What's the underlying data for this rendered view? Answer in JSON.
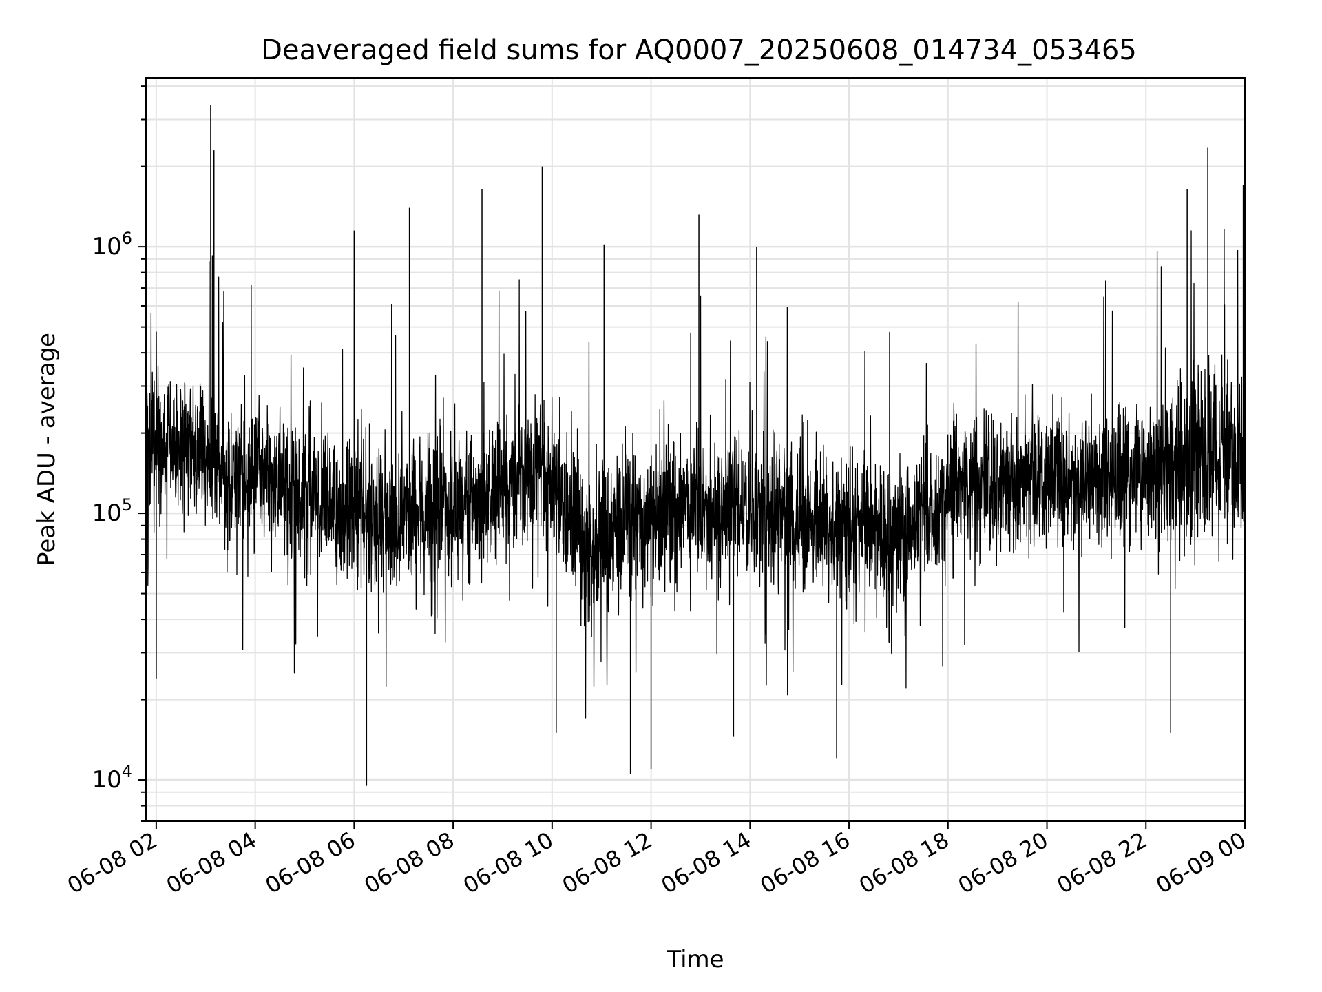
{
  "chart_data": {
    "type": "line",
    "title": "Deaveraged field sums for AQ0007_20250608_014734_053465",
    "xlabel": "Time",
    "ylabel": "Peak ADU - average",
    "y_scale": "log",
    "ylim": [
      7000,
      4300000
    ],
    "xlim": [
      "2025-06-08 01:47:34",
      "2025-06-09 00:00:00"
    ],
    "grid": true,
    "grid_minor": true,
    "legend": "none",
    "x_ticks": [
      {
        "t": "2025-06-08 02:00",
        "label": "06-08 02"
      },
      {
        "t": "2025-06-08 04:00",
        "label": "06-08 04"
      },
      {
        "t": "2025-06-08 06:00",
        "label": "06-08 06"
      },
      {
        "t": "2025-06-08 08:00",
        "label": "06-08 08"
      },
      {
        "t": "2025-06-08 10:00",
        "label": "06-08 10"
      },
      {
        "t": "2025-06-08 12:00",
        "label": "06-08 12"
      },
      {
        "t": "2025-06-08 14:00",
        "label": "06-08 14"
      },
      {
        "t": "2025-06-08 16:00",
        "label": "06-08 16"
      },
      {
        "t": "2025-06-08 18:00",
        "label": "06-08 18"
      },
      {
        "t": "2025-06-08 20:00",
        "label": "06-08 20"
      },
      {
        "t": "2025-06-08 22:00",
        "label": "06-08 22"
      },
      {
        "t": "2025-06-09 00:00",
        "label": "06-09 00"
      }
    ],
    "y_ticks": [
      {
        "value": 10000,
        "base": "10",
        "exp": "4"
      },
      {
        "value": 100000,
        "base": "10",
        "exp": "5"
      },
      {
        "value": 1000000,
        "base": "10",
        "exp": "6"
      }
    ],
    "series": [
      {
        "color": "#000000",
        "envelope": {
          "t": [
            "2025-06-08 01:48",
            "2025-06-08 02:30",
            "2025-06-08 03:00",
            "2025-06-08 04:00",
            "2025-06-08 05:00",
            "2025-06-08 06:00",
            "2025-06-08 06:30",
            "2025-06-08 07:00",
            "2025-06-08 08:00",
            "2025-06-08 09:00",
            "2025-06-08 09:45",
            "2025-06-08 10:00",
            "2025-06-08 10:45",
            "2025-06-08 11:30",
            "2025-06-08 12:30",
            "2025-06-08 13:00",
            "2025-06-08 14:00",
            "2025-06-08 15:00",
            "2025-06-08 16:00",
            "2025-06-08 16:45",
            "2025-06-08 17:30",
            "2025-06-08 18:00",
            "2025-06-08 19:00",
            "2025-06-08 20:00",
            "2025-06-08 21:00",
            "2025-06-08 22:00",
            "2025-06-08 23:00",
            "2025-06-09 00:00"
          ],
          "median": [
            190000,
            175000,
            150000,
            135000,
            120000,
            105000,
            92000,
            100000,
            108000,
            120000,
            160000,
            120000,
            72000,
            90000,
            100000,
            110000,
            100000,
            95000,
            92000,
            80000,
            88000,
            120000,
            130000,
            140000,
            135000,
            140000,
            170000,
            160000
          ],
          "low": [
            95000,
            90000,
            75000,
            62000,
            55000,
            48000,
            40000,
            45000,
            52000,
            58000,
            80000,
            55000,
            33000,
            40000,
            45000,
            50000,
            46000,
            44000,
            42000,
            36000,
            40000,
            58000,
            62000,
            68000,
            65000,
            68000,
            70000,
            70000
          ],
          "high": [
            330000,
            310000,
            270000,
            240000,
            210000,
            190000,
            170000,
            180000,
            195000,
            215000,
            290000,
            225000,
            135000,
            165000,
            185000,
            200000,
            180000,
            170000,
            165000,
            145000,
            160000,
            210000,
            230000,
            250000,
            240000,
            250000,
            380000,
            320000
          ]
        },
        "spikes_high": [
          {
            "t": "2025-06-08 03:06",
            "v": 3400000
          },
          {
            "t": "2025-06-08 03:10",
            "v": 2300000
          },
          {
            "t": "2025-06-08 06:00",
            "v": 1150000
          },
          {
            "t": "2025-06-08 07:07",
            "v": 1400000
          },
          {
            "t": "2025-06-08 08:35",
            "v": 1650000
          },
          {
            "t": "2025-06-08 09:48",
            "v": 2000000
          },
          {
            "t": "2025-06-08 11:03",
            "v": 1020000
          },
          {
            "t": "2025-06-08 12:58",
            "v": 1320000
          },
          {
            "t": "2025-06-08 14:08",
            "v": 1000000
          },
          {
            "t": "2025-06-08 23:15",
            "v": 2350000
          },
          {
            "t": "2025-06-08 22:50",
            "v": 1650000
          },
          {
            "t": "2025-06-08 23:58",
            "v": 1700000
          }
        ],
        "spikes_low": [
          {
            "t": "2025-06-08 06:15",
            "v": 9500
          },
          {
            "t": "2025-06-08 11:35",
            "v": 10500
          },
          {
            "t": "2025-06-08 12:00",
            "v": 11000
          },
          {
            "t": "2025-06-08 15:45",
            "v": 12000
          },
          {
            "t": "2025-06-08 02:00",
            "v": 24000
          },
          {
            "t": "2025-06-08 10:05",
            "v": 15000
          },
          {
            "t": "2025-06-08 13:40",
            "v": 14500
          },
          {
            "t": "2025-06-08 22:30",
            "v": 15000
          }
        ]
      }
    ]
  }
}
